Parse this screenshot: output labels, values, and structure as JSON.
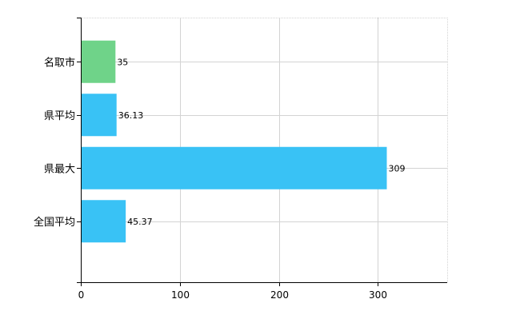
{
  "chart_data": {
    "type": "bar",
    "orientation": "horizontal",
    "categories": [
      "名取市",
      "県平均",
      "県最大",
      "全国平均"
    ],
    "values": [
      35,
      36.13,
      309,
      45.37
    ],
    "data_labels": [
      "35",
      "36.13",
      "309",
      "45.37"
    ],
    "bar_colors": [
      "#6fd389",
      "#39c2f5",
      "#39c2f5",
      "#39c2f5"
    ],
    "xlim": [
      0,
      370
    ],
    "xticks": [
      0,
      100,
      200,
      300
    ],
    "xtick_labels": [
      "0",
      "100",
      "200",
      "300"
    ],
    "grid": true,
    "gridline_color": "#d3d3d3",
    "axis_color": "#000000",
    "legend": "none",
    "title": "",
    "xlabel": "",
    "ylabel": ""
  }
}
